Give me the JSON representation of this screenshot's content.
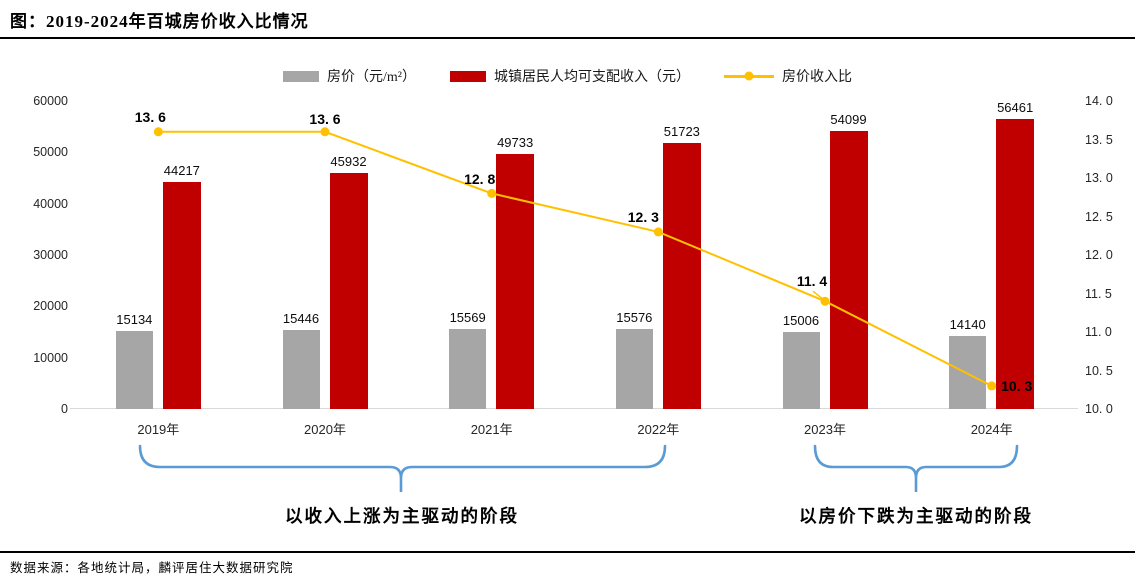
{
  "page": {
    "title": "图：2019-2024年百城房价收入比情况",
    "source": "数据来源：各地统计局，麟评居住大数据研究院"
  },
  "colors": {
    "price_bar": "#A6A6A6",
    "income_bar": "#C00000",
    "ratio_line": "#FFC000",
    "brace": "#5B9BD5",
    "baseline": "#D9D9D9"
  },
  "legend": {
    "items": [
      {
        "icon": "gray-square-swatch",
        "label": "房价（元/m²）",
        "color": "#A6A6A6"
      },
      {
        "icon": "red-square-swatch",
        "label": "城镇居民人均可支配收入（元）",
        "color": "#C00000"
      },
      {
        "icon": "yellow-line-marker",
        "label": "房价收入比",
        "color": "#FFC000"
      }
    ]
  },
  "chart_data": {
    "type": "combo-bar-line",
    "title": "图：2019-2024年百城房价收入比情况",
    "categories": [
      "2019年",
      "2020年",
      "2021年",
      "2022年",
      "2023年",
      "2024年"
    ],
    "series": [
      {
        "name": "房价（元/m²）",
        "type": "bar",
        "axis": "left",
        "color": "#A6A6A6",
        "values": [
          15134,
          15446,
          15569,
          15576,
          15006,
          14140
        ]
      },
      {
        "name": "城镇居民人均可支配收入（元）",
        "type": "bar",
        "axis": "left",
        "color": "#C00000",
        "values": [
          44217,
          45932,
          49733,
          51723,
          54099,
          56461
        ]
      },
      {
        "name": "房价收入比",
        "type": "line",
        "axis": "right",
        "color": "#FFC000",
        "values": [
          13.6,
          13.6,
          12.8,
          12.3,
          11.4,
          10.3
        ],
        "labels": [
          "13. 6",
          "13. 6",
          "12. 8",
          "12. 3",
          "11. 4",
          "10. 3"
        ]
      }
    ],
    "left_axis": {
      "min": 0,
      "max": 60000,
      "step": 10000,
      "ticks": [
        "0",
        "10000",
        "20000",
        "30000",
        "40000",
        "50000",
        "60000"
      ]
    },
    "right_axis": {
      "min": 10.0,
      "max": 14.0,
      "step": 0.5,
      "ticks": [
        "10. 0",
        "10. 5",
        "11. 0",
        "11. 5",
        "12. 0",
        "12. 5",
        "13. 0",
        "13. 5",
        "14. 0"
      ]
    },
    "grid": false,
    "legend_position": "top"
  },
  "annotations": {
    "phases": [
      {
        "label": "以收入上涨为主驱动的阶段",
        "from_category": "2019年",
        "to_category": "2022年"
      },
      {
        "label": "以房价下跌为主驱动的阶段",
        "from_category": "2023年",
        "to_category": "2024年"
      }
    ]
  }
}
